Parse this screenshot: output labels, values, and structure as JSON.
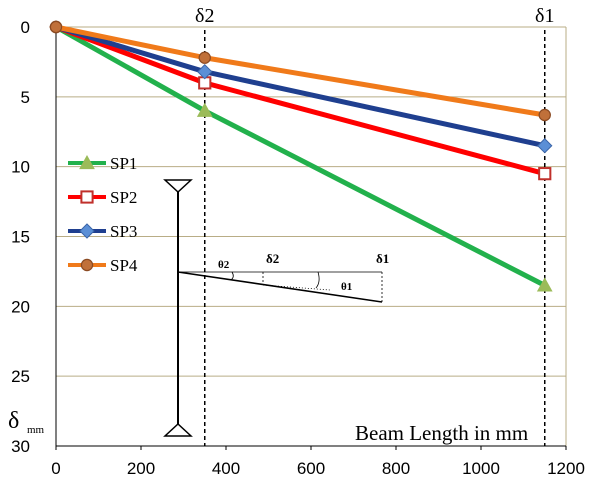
{
  "chart_data": {
    "type": "line",
    "xlabel": "Beam Length in mm",
    "ylabel": "δ",
    "ylabel_unit": "mm",
    "xlim": [
      0,
      1200
    ],
    "ylim": [
      0,
      30
    ],
    "y_inverted": true,
    "x_ticks": [
      "0",
      "200",
      "400",
      "600",
      "800",
      "1000",
      "1200"
    ],
    "y_ticks": [
      "0",
      "5",
      "10",
      "15",
      "20",
      "25",
      "30"
    ],
    "grid": "horizontal",
    "legend_position": "left",
    "markers": [
      {
        "label": "δ2",
        "x": 350
      },
      {
        "label": "δ1",
        "x": 1150
      }
    ],
    "series": [
      {
        "name": "SP1",
        "color": "#22b14c",
        "marker": "triangle",
        "x": [
          0,
          350,
          1150
        ],
        "y": [
          0,
          6.0,
          18.5
        ]
      },
      {
        "name": "SP2",
        "color": "#ff0000",
        "marker": "square-open",
        "x": [
          0,
          350,
          1150
        ],
        "y": [
          0,
          4.0,
          10.5
        ]
      },
      {
        "name": "SP3",
        "color": "#1f3f8f",
        "marker": "diamond",
        "x": [
          0,
          350,
          1150
        ],
        "y": [
          0,
          3.2,
          8.5
        ]
      },
      {
        "name": "SP4",
        "color": "#f07a1a",
        "marker": "circle",
        "x": [
          0,
          350,
          1150
        ],
        "y": [
          0,
          2.2,
          6.3
        ]
      }
    ],
    "inset": {
      "labels": [
        "θ2",
        "δ2",
        "δ1",
        "θ1"
      ]
    }
  }
}
